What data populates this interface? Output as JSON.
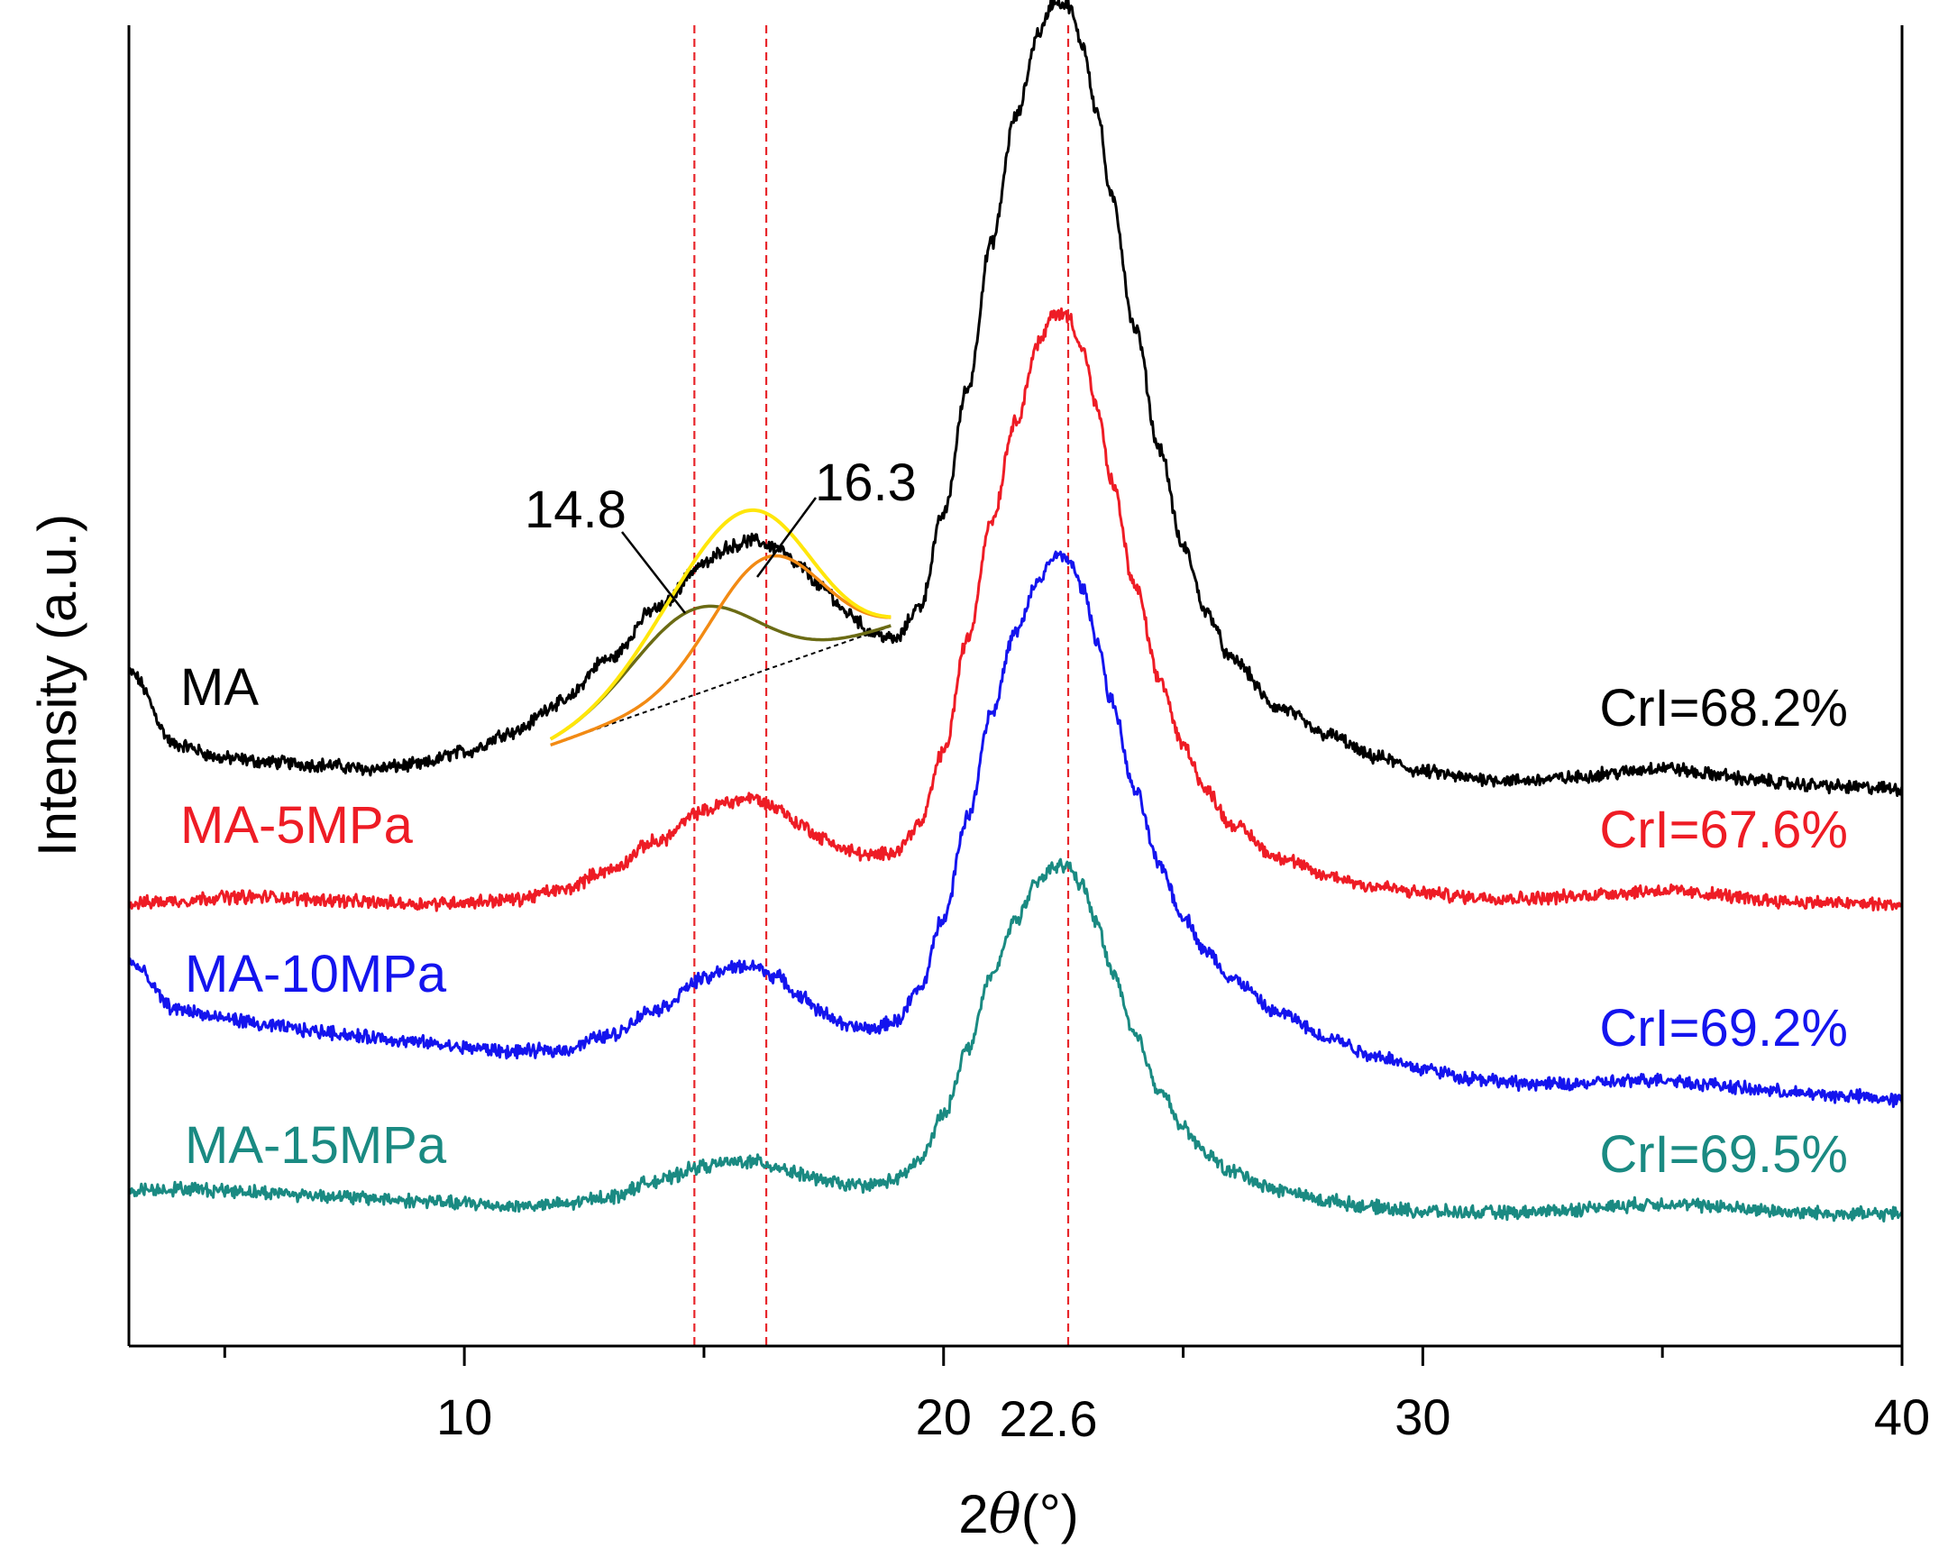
{
  "chart_data": {
    "type": "line",
    "title": "",
    "xlabel_prefix": "2",
    "xlabel_symbol": "θ",
    "xlabel_unit": "(°)",
    "ylabel": "Intensity (a.u.)",
    "xlim": [
      3,
      40
    ],
    "ylim": [
      0,
      100
    ],
    "x_major_ticks": [
      10,
      20,
      30,
      40
    ],
    "x_minor_ticks": [
      5,
      15,
      25,
      35
    ],
    "x_tick_labels": [
      "10",
      "20",
      "30",
      "40"
    ],
    "reference_lines": [
      {
        "x": 14.8,
        "label": "14.8",
        "color": "#e8262b"
      },
      {
        "x": 16.3,
        "label": "16.3",
        "color": "#e8262b"
      },
      {
        "x": 22.6,
        "label": "22.6",
        "color": "#e8262b"
      }
    ],
    "series": [
      {
        "name": "MA",
        "color": "#000000",
        "crystallinity_label": "CrI=68.2%",
        "x": [
          3,
          4,
          5,
          6,
          7,
          8,
          9,
          10,
          11,
          12,
          13,
          14,
          15,
          15.5,
          16,
          16.5,
          17,
          17.5,
          18,
          18.5,
          19,
          19.5,
          20,
          20.5,
          21,
          21.5,
          22,
          22.3,
          22.6,
          22.9,
          23.2,
          23.5,
          24,
          24.5,
          25,
          25.5,
          26,
          27,
          28,
          29,
          30,
          31,
          32,
          33,
          34,
          35,
          36,
          37,
          38,
          39,
          40
        ],
        "y": [
          51,
          45.5,
          44.5,
          44.2,
          44,
          43.7,
          44,
          45,
          46.5,
          48.7,
          52,
          55.8,
          59.2,
          60.5,
          61,
          60.5,
          59,
          57.3,
          55.5,
          54,
          53.5,
          56,
          63,
          72.5,
          83.5,
          93,
          99.5,
          101.8,
          101.5,
          98.5,
          93.5,
          87,
          77,
          68,
          60.5,
          55.5,
          52,
          48.3,
          46.3,
          44.6,
          43.5,
          43,
          42.8,
          43,
          43.4,
          43.8,
          43.3,
          42.8,
          42.5,
          42.3,
          42.2
        ]
      },
      {
        "name": "MA-5MPa",
        "color": "#ee1c25",
        "crystallinity_label": "CrI=67.6%",
        "x": [
          3,
          4,
          5,
          6,
          7,
          8,
          9,
          10,
          11,
          12,
          13,
          14,
          15,
          15.5,
          16,
          16.5,
          17,
          17.5,
          18,
          18.5,
          19,
          19.5,
          20,
          20.5,
          21,
          21.5,
          22,
          22.3,
          22.6,
          22.9,
          23.2,
          23.5,
          24,
          24.5,
          25,
          25.5,
          26,
          27,
          28,
          29,
          30,
          31,
          32,
          33,
          34,
          35,
          36,
          37,
          38,
          39,
          40
        ],
        "y": [
          33.5,
          33.7,
          34,
          34,
          33.8,
          33.6,
          33.5,
          33.6,
          33.8,
          34.5,
          36,
          38.2,
          40.5,
          41.2,
          41.5,
          40.8,
          39.5,
          38.4,
          37.5,
          37.1,
          37.5,
          39.5,
          45,
          53.5,
          62.5,
          70,
          76,
          78.2,
          78,
          75.5,
          71,
          65.5,
          57.5,
          50.5,
          45.5,
          42,
          39.5,
          37,
          35.6,
          34.8,
          34.3,
          34,
          33.9,
          34,
          34.3,
          34.5,
          34.2,
          33.8,
          33.6,
          33.5,
          33.4
        ]
      },
      {
        "name": "MA-10MPa",
        "color": "#1414ee",
        "crystallinity_label": "CrI=69.2%",
        "x": [
          3,
          4,
          5,
          6,
          7,
          8,
          9,
          10,
          11,
          12,
          13,
          14,
          15,
          15.5,
          16,
          16.5,
          17,
          17.5,
          18,
          18.5,
          19,
          19.5,
          20,
          20.5,
          21,
          21.5,
          22,
          22.3,
          22.6,
          22.9,
          23.2,
          23.5,
          24,
          24.5,
          25,
          25.5,
          26,
          27,
          28,
          29,
          30,
          31,
          32,
          33,
          34,
          35,
          36,
          37,
          38,
          39,
          40
        ],
        "y": [
          29,
          25.5,
          24.8,
          24.2,
          23.8,
          23.4,
          23,
          22.6,
          22.3,
          22.4,
          23.5,
          25.5,
          27.8,
          28.6,
          28.8,
          28,
          26.5,
          25.2,
          24.2,
          24,
          24.6,
          27,
          32.5,
          40,
          48,
          54,
          58,
          59.8,
          59.6,
          57.4,
          53.5,
          48.8,
          42,
          36.5,
          32.5,
          29.8,
          27.8,
          25.2,
          23.4,
          22,
          21,
          20.3,
          19.9,
          19.8,
          20,
          20.2,
          19.8,
          19.4,
          19.1,
          18.9,
          18.6
        ]
      },
      {
        "name": "MA-15MPa",
        "color": "#1a8a82",
        "crystallinity_label": "CrI=69.5%",
        "x": [
          3,
          4,
          5,
          6,
          7,
          8,
          9,
          10,
          11,
          12,
          13,
          14,
          15,
          15.5,
          16,
          16.5,
          17,
          17.5,
          18,
          18.5,
          19,
          19.5,
          20,
          20.5,
          21,
          21.5,
          22,
          22.3,
          22.6,
          22.9,
          23.2,
          23.5,
          24,
          24.5,
          25,
          25.5,
          26,
          27,
          28,
          29,
          30,
          31,
          32,
          33,
          34,
          35,
          36,
          37,
          38,
          39,
          40
        ],
        "y": [
          11.8,
          11.9,
          11.8,
          11.6,
          11.4,
          11.2,
          11,
          10.8,
          10.6,
          10.7,
          11.3,
          12.5,
          13.6,
          13.9,
          14,
          13.6,
          13,
          12.5,
          12.2,
          12.2,
          12.6,
          14,
          17.5,
          22.5,
          28,
          32.3,
          35.2,
          36.4,
          36.3,
          34.8,
          32,
          28.5,
          23.5,
          19.5,
          16.5,
          14.5,
          13.2,
          11.8,
          11,
          10.5,
          10.2,
          10.1,
          10.1,
          10.3,
          10.6,
          10.8,
          10.6,
          10.3,
          10.1,
          10,
          10
        ]
      }
    ],
    "deconvolution": {
      "baseline": {
        "x": [
          11.8,
          18.9
        ],
        "y": [
          45.5,
          54.5
        ],
        "color": "#000000"
      },
      "peaks": [
        {
          "label": "14.8",
          "center": 14.8,
          "height": 6.5,
          "sigma": 1.3,
          "color": "#6b6b14"
        },
        {
          "label": "16.3",
          "center": 16.3,
          "height": 8.5,
          "sigma": 1.15,
          "color": "#f28a13"
        }
      ],
      "envelope_color": "#ffe60a",
      "fit_range": [
        11.8,
        18.9
      ]
    }
  }
}
